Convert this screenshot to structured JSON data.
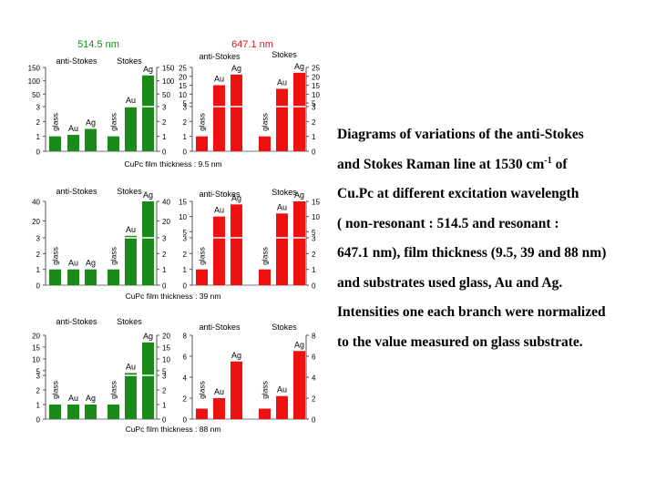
{
  "wavelength_labels": {
    "green": "514.5 nm",
    "red": "647.1 nm"
  },
  "branch_labels": {
    "anti_stokes": "anti-Stokes",
    "stokes": "Stokes"
  },
  "substrates": [
    "glass",
    "Au",
    "Ag"
  ],
  "colors": {
    "green": "#1a8a1a",
    "red": "#ee1111"
  },
  "caption": {
    "line1": "Diagrams of variations of the  anti-Stokes",
    "line2_pre": "and Stokes Raman line at 1530 cm",
    "line2_sup": "-1",
    "line2_post": " of",
    "line3": " Cu.Pc  at different excitation wavelength",
    "line4": "( non-resonant : 514.5 and resonant :",
    "line5": "647.1 nm), film thickness (9.5, 39 and 88 nm)",
    "line6": " and substrates used glass, Au and Ag.",
    "line7": "Intensities one each branch were normalized",
    "line8": "to the value measured on glass substrate."
  },
  "chart_data": [
    {
      "type": "bar",
      "title": "CuPc film thickness : 9.5 nm",
      "categories": [
        "glass",
        "Au",
        "Ag"
      ],
      "panels": [
        {
          "wavelength": "514.5 nm",
          "branch": "anti-Stokes",
          "values": [
            1,
            1.1,
            1.5
          ],
          "axis_ticks_low": [
            "0",
            "1",
            "2",
            "3"
          ],
          "axis_ticks_high": [
            "50",
            "100",
            "150"
          ]
        },
        {
          "wavelength": "514.5 nm",
          "branch": "Stokes",
          "values": [
            1,
            3.5,
            120
          ],
          "axis_ticks_low": [
            "0",
            "1",
            "2",
            "3"
          ],
          "axis_ticks_high": [
            "50",
            "100",
            "150"
          ]
        },
        {
          "wavelength": "647.1 nm",
          "branch": "anti-Stokes",
          "values": [
            1,
            15,
            21
          ],
          "axis_ticks_low": [
            "0",
            "1",
            "2",
            "3"
          ],
          "axis_ticks_high": [
            "5",
            "10",
            "15",
            "20",
            "25"
          ]
        },
        {
          "wavelength": "647.1 nm",
          "branch": "Stokes",
          "values": [
            1,
            13,
            22
          ],
          "axis_ticks_low": [
            "0",
            "1",
            "2",
            "3"
          ],
          "axis_ticks_high": [
            "5",
            "10",
            "15",
            "20",
            "25"
          ]
        }
      ]
    },
    {
      "type": "bar",
      "title": "CuPc film thickness : 39 nm",
      "categories": [
        "glass",
        "Au",
        "Ag"
      ],
      "panels": [
        {
          "wavelength": "514.5 nm",
          "branch": "anti-Stokes",
          "values": [
            1,
            1,
            1
          ],
          "axis_ticks_low": [
            "0",
            "1",
            "2",
            "3"
          ],
          "axis_ticks_high": [
            "20",
            "40"
          ]
        },
        {
          "wavelength": "514.5 nm",
          "branch": "Stokes",
          "values": [
            1,
            5,
            40
          ],
          "axis_ticks_low": [
            "0",
            "1",
            "2",
            "3"
          ],
          "axis_ticks_high": [
            "20",
            "40"
          ]
        },
        {
          "wavelength": "647.1 nm",
          "branch": "anti-Stokes",
          "values": [
            1,
            10,
            14
          ],
          "axis_ticks_low": [
            "0",
            "1",
            "2",
            "3"
          ],
          "axis_ticks_high": [
            "5",
            "10",
            "15"
          ]
        },
        {
          "wavelength": "647.1 nm",
          "branch": "Stokes",
          "values": [
            1,
            11,
            15
          ],
          "axis_ticks_low": [
            "0",
            "1",
            "2",
            "3"
          ],
          "axis_ticks_high": [
            "5",
            "10",
            "15"
          ]
        }
      ]
    },
    {
      "type": "bar",
      "title": "CuPc film thickness : 88 nm",
      "categories": [
        "glass",
        "Au",
        "Ag"
      ],
      "panels": [
        {
          "wavelength": "514.5 nm",
          "branch": "anti-Stokes",
          "values": [
            1,
            1,
            1
          ],
          "axis_ticks_low": [
            "0",
            "1",
            "2",
            "3"
          ],
          "axis_ticks_high": [
            "5",
            "10",
            "15",
            "20"
          ]
        },
        {
          "wavelength": "514.5 nm",
          "branch": "Stokes",
          "values": [
            1,
            4,
            17
          ],
          "axis_ticks_low": [
            "0",
            "1",
            "2",
            "3"
          ],
          "axis_ticks_high": [
            "5",
            "10",
            "15",
            "20"
          ]
        },
        {
          "wavelength": "647.1 nm",
          "branch": "anti-Stokes",
          "values": [
            1,
            2,
            5.5
          ],
          "axis_ticks_low": [
            "0",
            "2",
            "4",
            "6",
            "8"
          ],
          "axis_ticks_high": []
        },
        {
          "wavelength": "647.1 nm",
          "branch": "Stokes",
          "values": [
            1,
            2.2,
            6.5
          ],
          "axis_ticks_low": [
            "0",
            "2",
            "4",
            "6",
            "8"
          ],
          "axis_ticks_high": []
        }
      ]
    }
  ]
}
